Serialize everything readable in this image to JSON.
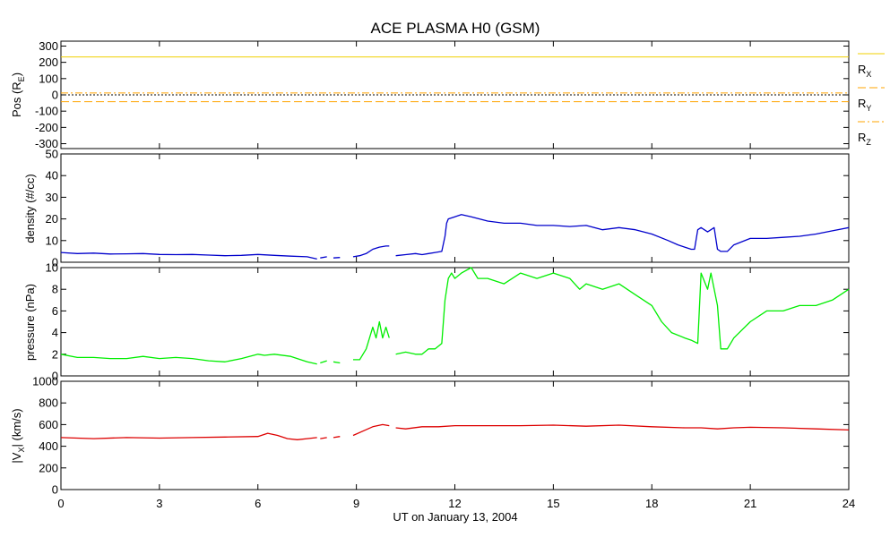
{
  "title": "ACE PLASMA H0 (GSM)",
  "xlabel": "UT on January 13, 2004",
  "x_ticks": [
    0,
    3,
    6,
    9,
    12,
    15,
    18,
    21,
    24
  ],
  "x_tick_labels": [
    "0",
    "3",
    "6",
    "9",
    "12",
    "15",
    "18",
    "21",
    "24"
  ],
  "colors": {
    "rx": "#f0d000",
    "ry": "#ffa500",
    "rz": "#ffa500",
    "zero": "#000000",
    "density": "#0000cc",
    "pressure": "#00ee00",
    "vx": "#dd0000"
  },
  "legend": [
    {
      "main": "R",
      "sub": "X",
      "style": "solid"
    },
    {
      "main": "R",
      "sub": "Y",
      "style": "dashed"
    },
    {
      "main": "R",
      "sub": "Z",
      "style": "dashdot"
    }
  ],
  "panels": {
    "pos": {
      "ylabel_main": "Pos (R",
      "ylabel_sub": "E",
      "ylabel_end": ")",
      "ylim": [
        -330,
        330
      ],
      "ticks": [
        -300,
        -200,
        -100,
        0,
        100,
        200,
        300
      ],
      "tick_labels": [
        "-300",
        "-200",
        "-100",
        "0",
        "100",
        "200",
        "300"
      ]
    },
    "density": {
      "ylabel": "density (#/cc)",
      "ylim": [
        0,
        50
      ],
      "ticks": [
        0,
        10,
        20,
        30,
        40,
        50
      ],
      "tick_labels": [
        "0",
        "10",
        "20",
        "30",
        "40",
        "50"
      ]
    },
    "pressure": {
      "ylabel": "pressure (nPa)",
      "ylim": [
        0,
        10
      ],
      "ticks": [
        0,
        2,
        4,
        6,
        8,
        10
      ],
      "tick_labels": [
        "0",
        "2",
        "4",
        "6",
        "8",
        "10"
      ]
    },
    "vx": {
      "ylabel_main": "|V",
      "ylabel_sub": "X",
      "ylabel_end": "| (km/s)",
      "ylim": [
        0,
        1000
      ],
      "ticks": [
        0,
        200,
        400,
        600,
        800,
        1000
      ],
      "tick_labels": [
        "0",
        "200",
        "400",
        "600",
        "800",
        "1000"
      ]
    }
  },
  "chart_data": {
    "type": "line",
    "title": "ACE PLASMA H0 (GSM)",
    "xlabel": "UT on January 13, 2004",
    "xlim": [
      0,
      24
    ],
    "panels": [
      {
        "ylabel": "Pos (RE)",
        "ylim": [
          -330,
          330
        ],
        "series": [
          {
            "name": "RX",
            "x": [
              0,
              24
            ],
            "y": [
              233,
              233
            ]
          },
          {
            "name": "RY",
            "x": [
              0,
              24
            ],
            "y": [
              -42,
              -42
            ]
          },
          {
            "name": "RZ",
            "x": [
              0,
              24
            ],
            "y": [
              12,
              12
            ]
          }
        ]
      },
      {
        "ylabel": "density (#/cc)",
        "ylim": [
          0,
          50
        ],
        "series": [
          {
            "name": "density",
            "segments": [
              {
                "x": [
                  0,
                  0.5,
                  1,
                  1.5,
                  2,
                  2.5,
                  3,
                  3.5,
                  4,
                  4.5,
                  5,
                  5.5,
                  6,
                  6.5,
                  7,
                  7.5,
                  7.8
                ],
                "y": [
                  4.5,
                  4.0,
                  4.2,
                  3.8,
                  3.9,
                  4.0,
                  3.6,
                  3.5,
                  3.6,
                  3.3,
                  3.0,
                  3.2,
                  3.6,
                  3.2,
                  2.8,
                  2.5,
                  1.5
                ]
              },
              {
                "x": [
                  7.9,
                  8.1
                ],
                "y": [
                  2.0,
                  2.5
                ]
              },
              {
                "x": [
                  8.3,
                  8.5
                ],
                "y": [
                  2.0,
                  2.2
                ]
              },
              {
                "x": [
                  8.9,
                  9.1,
                  9.3,
                  9.5,
                  9.7,
                  9.9,
                  10.0
                ],
                "y": [
                  2.5,
                  3.0,
                  4.0,
                  6.0,
                  7.0,
                  7.5,
                  7.5
                ]
              },
              {
                "x": [
                  10.2,
                  10.5,
                  10.8,
                  11.0,
                  11.2,
                  11.4,
                  11.6,
                  11.7,
                  11.75,
                  11.8,
                  12.0,
                  12.2,
                  12.5,
                  13,
                  13.5,
                  14,
                  14.5,
                  15,
                  15.5,
                  16,
                  16.5,
                  17,
                  17.5,
                  18,
                  18.5,
                  18.8,
                  19.0,
                  19.2,
                  19.3,
                  19.4,
                  19.5,
                  19.7,
                  19.9,
                  20.0,
                  20.1,
                  20.3,
                  20.5,
                  21,
                  21.5,
                  22,
                  22.5,
                  23,
                  23.5,
                  24
                ],
                "y": [
                  3.0,
                  3.5,
                  4.0,
                  3.5,
                  4.0,
                  4.5,
                  5.0,
                  12.0,
                  18.0,
                  20.0,
                  21.0,
                  22.0,
                  21.0,
                  19.0,
                  18.0,
                  18.0,
                  17.0,
                  17.0,
                  16.5,
                  17.0,
                  15.0,
                  16.0,
                  15.0,
                  13.0,
                  10.0,
                  8.0,
                  7.0,
                  6.0,
                  6.0,
                  15.0,
                  16.0,
                  14.0,
                  16.0,
                  6.0,
                  5.0,
                  5.0,
                  8.0,
                  11.0,
                  11.0,
                  11.5,
                  12.0,
                  13.0,
                  14.5,
                  16.0
                ]
              }
            ]
          }
        ]
      },
      {
        "ylabel": "pressure (nPa)",
        "ylim": [
          0,
          10
        ],
        "series": [
          {
            "name": "pressure",
            "segments": [
              {
                "x": [
                  0,
                  0.5,
                  1,
                  1.5,
                  2,
                  2.5,
                  3,
                  3.5,
                  4,
                  4.5,
                  5,
                  5.5,
                  6,
                  6.2,
                  6.5,
                  7,
                  7.5,
                  7.8
                ],
                "y": [
                  2.0,
                  1.7,
                  1.7,
                  1.6,
                  1.6,
                  1.8,
                  1.6,
                  1.7,
                  1.6,
                  1.4,
                  1.3,
                  1.6,
                  2.0,
                  1.9,
                  2.0,
                  1.8,
                  1.3,
                  1.1
                ]
              },
              {
                "x": [
                  7.9,
                  8.1
                ],
                "y": [
                  1.2,
                  1.4
                ]
              },
              {
                "x": [
                  8.3,
                  8.5
                ],
                "y": [
                  1.3,
                  1.2
                ]
              },
              {
                "x": [
                  8.9,
                  9.1,
                  9.3,
                  9.4,
                  9.5,
                  9.6,
                  9.7,
                  9.8,
                  9.9,
                  10.0
                ],
                "y": [
                  1.5,
                  1.5,
                  2.5,
                  3.5,
                  4.5,
                  3.5,
                  5.0,
                  3.5,
                  4.5,
                  3.5
                ]
              },
              {
                "x": [
                  10.2,
                  10.5,
                  10.8,
                  11.0,
                  11.2,
                  11.4,
                  11.6,
                  11.7,
                  11.8,
                  11.9,
                  12.0,
                  12.2,
                  12.5,
                  12.7,
                  13,
                  13.5,
                  14,
                  14.5,
                  15,
                  15.5,
                  15.8,
                  16,
                  16.5,
                  17,
                  17.5,
                  18,
                  18.3,
                  18.6,
                  19.0,
                  19.2,
                  19.4,
                  19.5,
                  19.7,
                  19.8,
                  20.0,
                  20.1,
                  20.3,
                  20.5,
                  21,
                  21.5,
                  22,
                  22.5,
                  23,
                  23.5,
                  24
                ],
                "y": [
                  2.0,
                  2.2,
                  2.0,
                  2.0,
                  2.5,
                  2.5,
                  3.0,
                  7.0,
                  9.0,
                  9.5,
                  9.0,
                  9.5,
                  10.0,
                  9.0,
                  9.0,
                  8.5,
                  9.5,
                  9.0,
                  9.5,
                  9.0,
                  8.0,
                  8.5,
                  8.0,
                  8.5,
                  7.5,
                  6.5,
                  5.0,
                  4.0,
                  3.5,
                  3.3,
                  3.0,
                  9.5,
                  8.0,
                  9.5,
                  6.5,
                  2.5,
                  2.5,
                  3.5,
                  5.0,
                  6.0,
                  6.0,
                  6.5,
                  6.5,
                  7.0,
                  8.0
                ]
              }
            ]
          }
        ]
      },
      {
        "ylabel": "|VX| (km/s)",
        "ylim": [
          0,
          1000
        ],
        "series": [
          {
            "name": "|VX|",
            "segments": [
              {
                "x": [
                  0,
                  1,
                  2,
                  3,
                  4,
                  5,
                  6,
                  6.3,
                  6.6,
                  6.9,
                  7.2,
                  7.5,
                  7.8
                ],
                "y": [
                  480,
                  470,
                  480,
                  475,
                  480,
                  485,
                  490,
                  520,
                  500,
                  470,
                  460,
                  470,
                  480
                ]
              },
              {
                "x": [
                  7.9,
                  8.1
                ],
                "y": [
                  470,
                  480
                ]
              },
              {
                "x": [
                  8.3,
                  8.5
                ],
                "y": [
                  480,
                  490
                ]
              },
              {
                "x": [
                  8.9,
                  9.2,
                  9.5,
                  9.8,
                  10.0
                ],
                "y": [
                  500,
                  540,
                  580,
                  600,
                  590
                ]
              },
              {
                "x": [
                  10.2,
                  10.5,
                  11.0,
                  11.5,
                  12.0,
                  13,
                  14,
                  15,
                  16,
                  17,
                  18,
                  19,
                  19.5,
                  20,
                  20.5,
                  21,
                  22,
                  23,
                  24
                ],
                "y": [
                  570,
                  560,
                  580,
                  580,
                  590,
                  590,
                  590,
                  595,
                  585,
                  595,
                  580,
                  570,
                  570,
                  560,
                  570,
                  575,
                  570,
                  560,
                  550
                ]
              }
            ]
          }
        ]
      }
    ]
  }
}
